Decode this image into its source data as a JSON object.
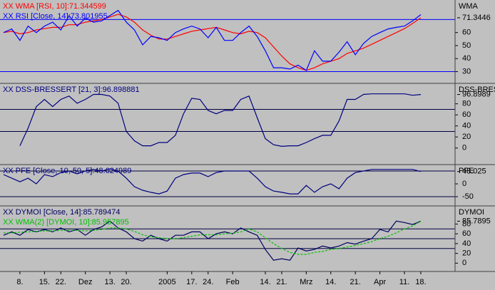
{
  "chart_data": [
    {
      "type": "line",
      "y_label": "WMA",
      "ylim": [
        21,
        85
      ],
      "yticks": [
        30,
        40,
        50,
        60
      ],
      "hlines": [
        70,
        30
      ],
      "hline_color": "#0000ff",
      "series": [
        {
          "name": "XX WMA [RSI, 10]:71.344599",
          "color": "#ff0000",
          "end_label": "71.3446",
          "values": [
            60,
            61,
            59,
            60,
            62,
            63,
            64,
            64,
            66,
            66,
            68,
            69,
            70,
            72,
            74,
            72,
            68,
            62,
            58,
            55,
            55,
            57,
            59,
            61,
            62,
            63,
            64,
            62,
            60,
            59,
            61,
            60,
            56,
            49,
            42,
            36,
            33,
            31,
            33,
            36,
            38,
            40,
            44,
            46,
            48,
            51,
            54,
            57,
            60,
            63,
            67,
            71.344599
          ]
        },
        {
          "name": "XX RSI [Close, 14]:73.801955",
          "color": "#0000ff",
          "values": [
            60,
            62.8,
            54,
            65,
            60,
            65,
            68,
            62,
            73,
            65,
            71,
            68,
            69,
            73,
            77,
            68,
            62,
            50.6,
            57,
            56,
            54,
            60,
            62.8,
            65,
            62.8,
            56,
            64,
            54,
            54,
            60,
            65,
            57,
            46,
            33,
            33,
            32,
            35,
            31,
            46,
            38,
            38,
            45,
            53,
            43,
            51.7,
            57,
            60,
            62.8,
            64,
            65,
            69,
            73.801955
          ]
        }
      ]
    },
    {
      "type": "line",
      "y_label": "DSS-BRES",
      "ylim": [
        -30,
        117
      ],
      "yticks": [
        0,
        20,
        40,
        60,
        80
      ],
      "hlines": [
        70,
        30
      ],
      "hline_color": "#000040",
      "series": [
        {
          "name": "XX DSS-BRESSERT [21, 3]:96.898881",
          "color": "#000080",
          "end_label": "96.8989",
          "values": [
            null,
            null,
            4,
            36,
            75,
            88,
            75,
            88,
            94,
            81,
            88,
            97,
            97,
            94,
            81,
            30,
            13,
            4,
            4,
            10,
            10,
            23,
            62,
            90,
            88,
            68,
            62,
            68,
            68,
            88,
            94,
            55,
            17,
            6,
            3,
            4,
            4,
            10,
            17,
            23,
            23,
            49,
            88,
            88,
            97,
            98,
            98,
            98,
            98,
            98,
            95.5,
            96.898881
          ]
        }
      ]
    },
    {
      "type": "line",
      "y_label": "PFE",
      "ylim": [
        -86,
        75
      ],
      "yticks": [
        -50,
        0
      ],
      "hlines": [
        50,
        -50
      ],
      "hline_color": "#000040",
      "series": [
        {
          "name": "XX PFE [Close, 10, 50, 5]:48.024989",
          "color": "#000080",
          "end_label": "48.025",
          "values": [
            36,
            22,
            8,
            22,
            0,
            36,
            28,
            44,
            50,
            39,
            50,
            56,
            50,
            58,
            50,
            22,
            -11,
            -25,
            -33,
            -39,
            -28,
            22,
            36,
            42,
            42,
            28,
            44,
            50,
            50,
            50,
            50,
            22,
            -11,
            -28,
            -33,
            -39,
            -39,
            -6,
            -33,
            -11,
            0,
            -19,
            22,
            44,
            50,
            56,
            56,
            56,
            56,
            56,
            56,
            48.024989
          ]
        }
      ]
    },
    {
      "type": "line",
      "y_label": "DYMOI",
      "ylim": [
        -17,
        117
      ],
      "yticks": [
        0,
        20,
        40,
        60,
        80
      ],
      "hlines": [
        70,
        50,
        30
      ],
      "hline_color": "#000040",
      "categories": [
        null,
        null,
        "8.",
        null,
        null,
        "15.",
        null,
        "22.",
        null,
        null,
        "Dez",
        null,
        null,
        "13.",
        null,
        "20.",
        null,
        null,
        null,
        null,
        "2005",
        null,
        null,
        "17.",
        null,
        "24.",
        null,
        null,
        "Feb",
        null,
        null,
        null,
        "14.",
        null,
        "21.",
        null,
        null,
        "Mrz",
        null,
        null,
        "14.",
        null,
        null,
        "21.",
        null,
        null,
        "Apr",
        null,
        null,
        "11.",
        null,
        "18."
      ],
      "series": [
        {
          "name": "XX DYMOI [Close, 14]:85.789474",
          "color": "#000060",
          "end_label": "85.7895",
          "values": [
            57,
            64,
            57,
            69,
            64,
            69,
            64,
            72,
            64,
            69,
            57,
            69,
            74,
            86,
            72,
            64,
            50,
            45,
            57,
            50,
            45,
            57,
            57,
            64,
            64,
            50,
            60,
            64,
            60,
            72,
            64,
            57,
            28,
            6,
            9,
            6,
            31,
            25,
            28,
            35,
            31,
            35,
            42,
            39,
            45,
            50,
            69,
            64,
            86,
            83,
            79,
            85.789474
          ]
        },
        {
          "name": "XX WMA(2) [DYMOI, 10]:85.957895",
          "color": "#00c000",
          "dash": true,
          "values": [
            62,
            62,
            63,
            64,
            65,
            66,
            66,
            67,
            67,
            67,
            66,
            67,
            69,
            72,
            72,
            70,
            65,
            58,
            54,
            52,
            50,
            50,
            52,
            55,
            58,
            58,
            58,
            60,
            61,
            64,
            70,
            64,
            52,
            40,
            30,
            22,
            18,
            18,
            22,
            24,
            28,
            30,
            33,
            36,
            40,
            44,
            50,
            55,
            62,
            70,
            76,
            85.957895
          ]
        }
      ]
    }
  ]
}
